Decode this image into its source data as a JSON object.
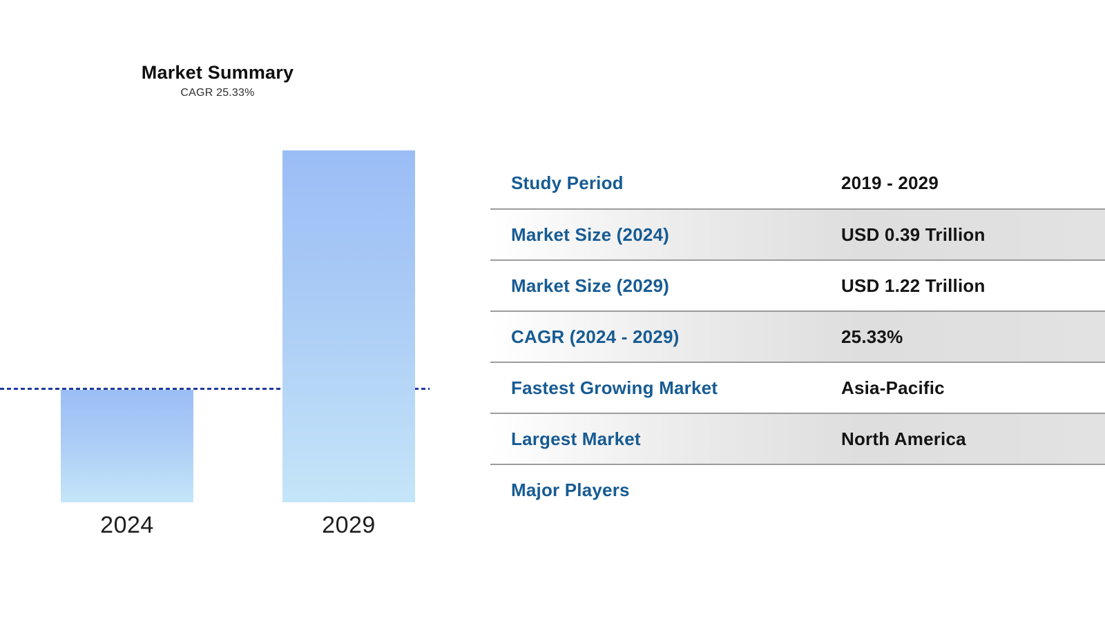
{
  "chart": {
    "title": "Market Summary",
    "subtitle": "CAGR 25.33%",
    "bar_labels": [
      "2024",
      "2029"
    ],
    "colors": {
      "bar_gradient_top": "#9bbdf6",
      "bar_gradient_bottom": "#c5e5f9",
      "guide_line_navy": "#1e3a9f",
      "axis_label_text": "#1e1e1e"
    }
  },
  "table": {
    "label_color": "#175b93",
    "value_color": "#141414",
    "separator_color": "#9c9c9c",
    "shaded_row_gray": "#dedede",
    "rows": [
      {
        "label": "Study Period",
        "value": "2019 - 2029"
      },
      {
        "label": "Market Size (2024)",
        "value": "USD 0.39 Trillion"
      },
      {
        "label": "Market Size (2029)",
        "value": "USD 1.22 Trillion"
      },
      {
        "label": "CAGR (2024 - 2029)",
        "value": "25.33%"
      },
      {
        "label": "Fastest Growing Market",
        "value": "Asia-Pacific"
      },
      {
        "label": "Largest Market",
        "value": "North America"
      },
      {
        "label": "Major Players",
        "value": ""
      }
    ]
  },
  "chart_data": {
    "type": "bar",
    "categories": [
      "2024",
      "2029"
    ],
    "values": [
      0.39,
      1.22
    ],
    "title": "Market Summary",
    "subtitle": "CAGR 25.33%",
    "unit": "USD Trillion",
    "xlabel": "",
    "ylabel": "",
    "ylim": [
      0,
      1.25
    ],
    "grid": false,
    "legend": "none",
    "annotations": [
      "horizontal dashed navy guide line at the 2024 level (0.39)"
    ]
  }
}
